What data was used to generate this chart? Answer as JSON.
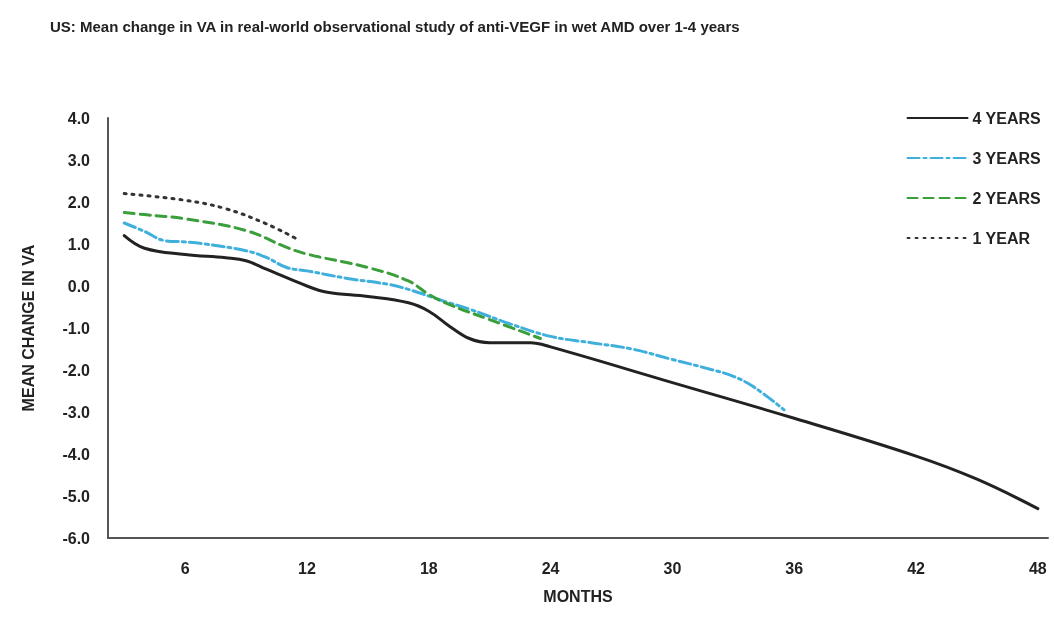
{
  "chart_data": {
    "type": "line",
    "title": "US: Mean change in VA in real-world observational study of anti-VEGF in wet AMD over 1-4 years",
    "xlabel": "MONTHS",
    "ylabel": "MEAN CHANGE IN VA",
    "xlim": [
      2.2,
      48.5
    ],
    "xticks": [
      6,
      12,
      18,
      24,
      30,
      36,
      42,
      48
    ],
    "ylim": [
      -6,
      4
    ],
    "yticks": [
      {
        "value": -6,
        "label": "-6.0"
      },
      {
        "value": -5,
        "label": "-5.0"
      },
      {
        "value": -4,
        "label": "-4.0"
      },
      {
        "value": -3,
        "label": "-3.0"
      },
      {
        "value": -2,
        "label": "-2.0"
      },
      {
        "value": -1,
        "label": "-1.0"
      },
      {
        "value": 0,
        "label": "0.0"
      },
      {
        "value": 1,
        "label": "1.0"
      },
      {
        "value": 2,
        "label": "2.0"
      },
      {
        "value": 3,
        "label": "3.0"
      },
      {
        "value": 4,
        "label": "4.0"
      }
    ],
    "grid": false,
    "legend": "top right",
    "marker": "none",
    "series": [
      {
        "name": "4 YEARS",
        "color": "#222222",
        "line_style": "solid",
        "x": [
          3,
          4,
          6,
          8,
          9,
          10,
          12,
          13,
          15,
          17,
          18,
          19,
          20,
          21,
          23,
          24,
          30,
          36,
          42,
          45,
          48
        ],
        "values": [
          1.2,
          0.9,
          0.75,
          0.67,
          0.6,
          0.4,
          0.0,
          -0.15,
          -0.25,
          -0.4,
          -0.6,
          -0.95,
          -1.25,
          -1.35,
          -1.35,
          -1.45,
          -2.3,
          -3.15,
          -4.05,
          -4.6,
          -5.3
        ]
      },
      {
        "name": "3 YEARS",
        "color": "#3fb0dc",
        "line_style": "dashdot",
        "x": [
          3,
          4,
          5,
          6,
          7,
          9,
          10,
          11,
          12,
          14,
          16,
          17,
          18,
          19,
          20,
          22,
          24,
          26,
          28,
          30,
          32,
          33,
          34,
          35.5
        ],
        "values": [
          1.5,
          1.3,
          1.08,
          1.05,
          1.0,
          0.84,
          0.68,
          0.44,
          0.36,
          0.18,
          0.04,
          -0.08,
          -0.24,
          -0.4,
          -0.55,
          -0.9,
          -1.2,
          -1.35,
          -1.5,
          -1.75,
          -2.0,
          -2.15,
          -2.4,
          -2.95
        ]
      },
      {
        "name": "2 YEARS",
        "color": "#3a9e3a",
        "line_style": "dashed",
        "x": [
          3,
          4,
          6,
          9,
          11,
          12,
          15,
          17,
          18,
          19,
          21,
          23.5
        ],
        "values": [
          1.75,
          1.7,
          1.6,
          1.32,
          0.92,
          0.76,
          0.44,
          0.12,
          -0.2,
          -0.44,
          -0.8,
          -1.25
        ]
      },
      {
        "name": "1 YEAR",
        "color": "#333333",
        "line_style": "dotted",
        "x": [
          3,
          6,
          8,
          10,
          11.5
        ],
        "values": [
          2.2,
          2.04,
          1.84,
          1.48,
          1.12
        ]
      }
    ]
  }
}
